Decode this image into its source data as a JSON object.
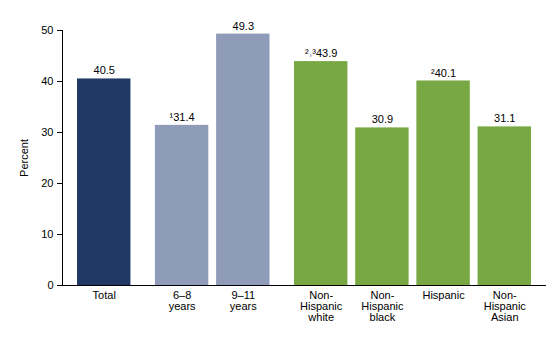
{
  "chart_data": {
    "type": "bar",
    "categories": [
      "Total",
      "6–8 years",
      "9–11 years",
      "Non-Hispanic white",
      "Non-Hispanic black",
      "Hispanic",
      "Non-Hispanic Asian"
    ],
    "values": [
      40.5,
      31.4,
      49.3,
      43.9,
      30.9,
      40.1,
      31.1
    ],
    "value_labels": [
      "40.5",
      "¹31.4",
      "49.3",
      "²˒³43.9",
      "30.9",
      "²40.1",
      "31.1"
    ],
    "colors": [
      "#1f3864",
      "#8e9bb9",
      "#8e9bb9",
      "#77a843",
      "#77a843",
      "#77a843",
      "#77a843"
    ],
    "y_label": "Percent",
    "ylim": [
      0,
      50
    ],
    "yticks": [
      0,
      10,
      20,
      30,
      40,
      50
    ],
    "grid": false,
    "data_labels": true
  }
}
